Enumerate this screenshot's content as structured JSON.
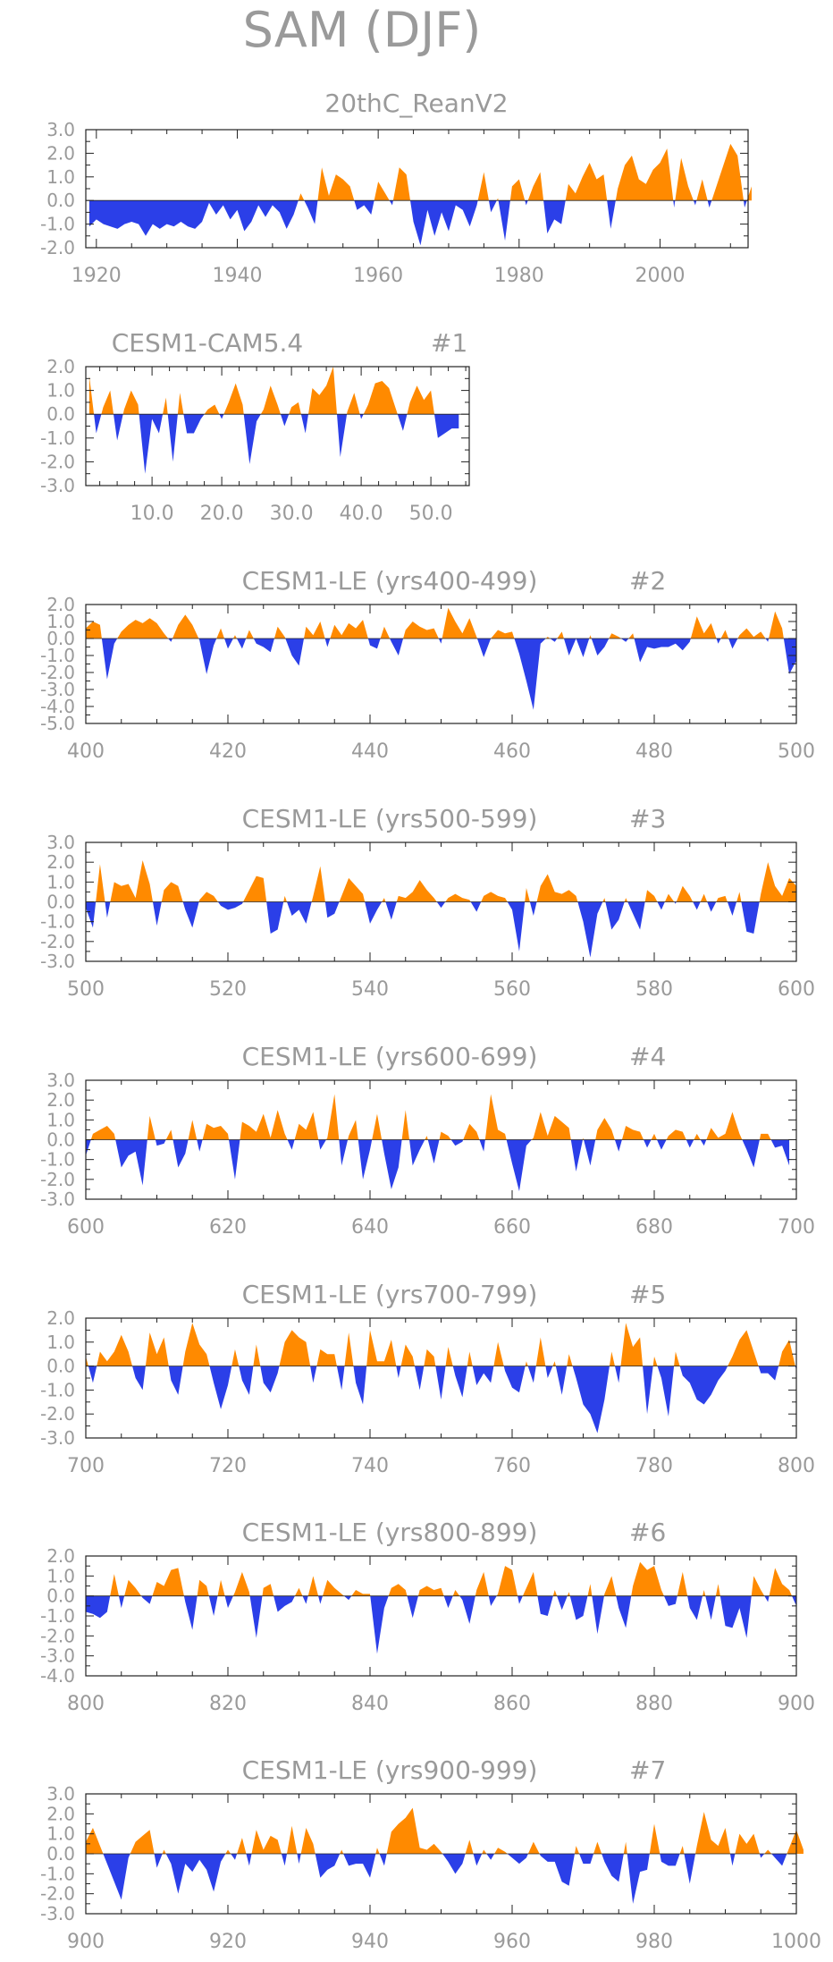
{
  "figure_title": "SAM (DJF)",
  "colors": {
    "positive": "#ff8a00",
    "negative": "#2b3fe8",
    "text": "#9a9a9a",
    "axis": "#222222"
  },
  "chart_data": [
    {
      "type": "area",
      "title": "20thC_ReanV2",
      "subtitle": "",
      "ylim": [
        -2.0,
        3.0
      ],
      "yticks": [
        3.0,
        2.0,
        1.0,
        0.0,
        -1.0,
        -2.0
      ],
      "ytick_labels": [
        "3.0",
        "2.0",
        "1.0",
        "0.0",
        "-1.0",
        "-2.0"
      ],
      "xlim": [
        1918.5,
        2012.5
      ],
      "xticks": [
        1920,
        1940,
        1960,
        1980,
        2000
      ],
      "xtick_labels": [
        "1920",
        "1940",
        "1960",
        "1980",
        "2000"
      ],
      "x_start": 1919,
      "values": [
        -1.1,
        -0.8,
        -1.0,
        -1.1,
        -1.2,
        -1.0,
        -0.9,
        -1.0,
        -1.5,
        -1.0,
        -1.2,
        -1.0,
        -1.1,
        -0.9,
        -1.1,
        -1.2,
        -0.9,
        -0.1,
        -0.6,
        -0.2,
        -0.8,
        -0.4,
        -1.3,
        -0.9,
        -0.2,
        -0.7,
        -0.2,
        -0.5,
        -1.2,
        -0.6,
        0.3,
        -0.3,
        -1.0,
        1.4,
        0.2,
        1.1,
        0.9,
        0.6,
        -0.4,
        -0.2,
        -0.6,
        0.8,
        0.3,
        -0.2,
        1.4,
        1.1,
        -0.9,
        -1.9,
        -0.4,
        -1.5,
        -0.5,
        -1.3,
        -0.2,
        -0.4,
        -1.1,
        -0.2,
        1.2,
        -0.5,
        0.1,
        -1.7,
        0.6,
        0.9,
        -0.2,
        0.6,
        1.2,
        -1.4,
        -0.8,
        -1.0,
        0.7,
        0.3,
        1.0,
        1.6,
        0.9,
        1.1,
        -1.2,
        0.5,
        1.5,
        1.9,
        0.9,
        0.7,
        1.3,
        1.6,
        2.2,
        -0.3,
        1.8,
        0.6,
        -0.2,
        0.9,
        -0.3,
        0.6,
        1.5,
        2.4,
        1.9,
        -0.3,
        0.6
      ]
    },
    {
      "type": "area",
      "title": "CESM1-CAM5.4",
      "subtitle": "#1",
      "ylim": [
        -3.0,
        2.0
      ],
      "yticks": [
        2.0,
        1.0,
        0.0,
        -1.0,
        -2.0,
        -3.0
      ],
      "ytick_labels": [
        "2.0",
        "1.0",
        "0.0",
        "-1.0",
        "-2.0",
        "-3.0"
      ],
      "xlim": [
        0.5,
        55.5
      ],
      "xticks": [
        10,
        20,
        30,
        40,
        50
      ],
      "xtick_labels": [
        "10.0",
        "20.0",
        "30.0",
        "40.0",
        "50.0"
      ],
      "x_start": 1,
      "values": [
        1.6,
        -0.8,
        0.3,
        1.0,
        -1.1,
        0.2,
        1.0,
        0.4,
        -2.5,
        -0.2,
        -0.8,
        0.7,
        -2.0,
        0.9,
        -0.8,
        -0.8,
        -0.2,
        0.2,
        0.4,
        -0.2,
        0.5,
        1.3,
        0.4,
        -2.1,
        -0.3,
        0.2,
        1.2,
        0.4,
        -0.5,
        0.3,
        0.5,
        -0.8,
        1.1,
        0.8,
        1.2,
        2.0,
        -1.8,
        0.1,
        0.9,
        -0.2,
        0.4,
        1.3,
        1.4,
        1.1,
        0.2,
        -0.7,
        0.5,
        1.2,
        0.6,
        1.0,
        -1.0,
        -0.8,
        -0.6,
        -0.6
      ]
    },
    {
      "type": "area",
      "title": "CESM1-LE (yrs400-499)",
      "subtitle": "#2",
      "ylim": [
        -5.0,
        2.0
      ],
      "yticks": [
        2.0,
        1.0,
        0.0,
        -1.0,
        -2.0,
        -3.0,
        -4.0,
        -5.0
      ],
      "ytick_labels": [
        "2.0",
        "1.0",
        "0.0",
        "-1.0",
        "-2.0",
        "-3.0",
        "-4.0",
        "-5.0"
      ],
      "xlim": [
        400,
        500
      ],
      "xticks": [
        400,
        420,
        440,
        460,
        480,
        500
      ],
      "xtick_labels": [
        "400",
        "420",
        "440",
        "460",
        "480",
        "500"
      ],
      "x_start": 400,
      "values": [
        0.6,
        1.0,
        0.8,
        -2.4,
        -0.3,
        0.4,
        0.8,
        1.1,
        0.9,
        1.2,
        0.9,
        0.3,
        -0.2,
        0.8,
        1.4,
        0.8,
        -0.1,
        -2.1,
        -0.4,
        0.6,
        -0.6,
        0.2,
        -0.6,
        0.5,
        -0.3,
        -0.5,
        -0.8,
        0.7,
        0.1,
        -1.0,
        -1.6,
        0.7,
        0.2,
        1.0,
        -0.5,
        0.8,
        0.2,
        0.9,
        0.6,
        1.1,
        -0.4,
        -0.6,
        0.7,
        -0.2,
        -1.0,
        0.5,
        1.0,
        0.7,
        0.5,
        0.6,
        -0.3,
        1.8,
        1.0,
        0.3,
        1.2,
        0.1,
        -1.1,
        0.0,
        0.5,
        0.3,
        0.4,
        -0.9,
        -2.5,
        -4.2,
        -0.3,
        0.1,
        -0.2,
        0.4,
        -1.0,
        0.0,
        -1.1,
        0.2,
        -1.0,
        -0.5,
        0.3,
        0.1,
        -0.2,
        0.3,
        -1.4,
        -0.5,
        -0.6,
        -0.5,
        -0.5,
        -0.3,
        -0.7,
        -0.2,
        1.3,
        0.3,
        0.9,
        -0.3,
        0.5,
        -0.6,
        0.2,
        0.6,
        0.1,
        0.4,
        -0.2,
        1.6,
        0.6,
        -2.1,
        -1.3
      ]
    },
    {
      "type": "area",
      "title": "CESM1-LE (yrs500-599)",
      "subtitle": "#3",
      "ylim": [
        -3.0,
        3.0
      ],
      "yticks": [
        3.0,
        2.0,
        1.0,
        0.0,
        -1.0,
        -2.0,
        -3.0
      ],
      "ytick_labels": [
        "3.0",
        "2.0",
        "1.0",
        "0.0",
        "-1.0",
        "-2.0",
        "-3.0"
      ],
      "xlim": [
        500,
        600
      ],
      "xticks": [
        500,
        520,
        540,
        560,
        580,
        600
      ],
      "xtick_labels": [
        "500",
        "520",
        "540",
        "560",
        "580",
        "600"
      ],
      "x_start": 500,
      "values": [
        -0.3,
        -1.3,
        1.9,
        -0.8,
        1.0,
        0.8,
        0.9,
        0.2,
        2.1,
        0.9,
        -1.2,
        0.6,
        1.0,
        0.8,
        -0.4,
        -1.3,
        0.1,
        0.5,
        0.3,
        -0.2,
        -0.4,
        -0.3,
        -0.1,
        0.6,
        1.3,
        1.2,
        -1.6,
        -1.4,
        0.3,
        -0.7,
        -0.4,
        -1.1,
        0.3,
        1.8,
        -0.8,
        -0.6,
        0.3,
        1.2,
        0.8,
        0.4,
        -1.1,
        -0.4,
        0.2,
        -0.9,
        0.3,
        0.2,
        0.5,
        1.1,
        0.6,
        0.2,
        -0.3,
        0.2,
        0.4,
        0.2,
        0.1,
        -0.5,
        0.3,
        0.5,
        0.3,
        0.2,
        -0.4,
        -2.5,
        0.7,
        -0.7,
        0.8,
        1.4,
        0.5,
        0.4,
        0.6,
        0.3,
        -1.0,
        -2.8,
        -0.6,
        0.2,
        -1.4,
        -0.9,
        0.2,
        -0.6,
        -1.4,
        0.6,
        0.3,
        -0.4,
        0.4,
        -0.1,
        0.8,
        0.3,
        -0.4,
        0.4,
        -0.5,
        0.2,
        0.3,
        -0.7,
        0.5,
        -1.5,
        -1.6,
        0.4,
        2.0,
        0.8,
        0.3,
        1.2,
        0.8
      ]
    },
    {
      "type": "area",
      "title": "CESM1-LE (yrs600-699)",
      "subtitle": "#4",
      "ylim": [
        -3.0,
        3.0
      ],
      "yticks": [
        3.0,
        2.0,
        1.0,
        0.0,
        -1.0,
        -2.0,
        -3.0
      ],
      "ytick_labels": [
        "3.0",
        "2.0",
        "1.0",
        "0.0",
        "-1.0",
        "-2.0",
        "-3.0"
      ],
      "xlim": [
        600,
        700
      ],
      "xticks": [
        600,
        620,
        640,
        660,
        680,
        700
      ],
      "xtick_labels": [
        "600",
        "620",
        "640",
        "660",
        "680",
        "700"
      ],
      "x_start": 600,
      "values": [
        -0.8,
        0.3,
        0.5,
        0.7,
        0.3,
        -1.4,
        -0.8,
        -0.6,
        -2.3,
        1.2,
        -0.3,
        -0.2,
        0.5,
        -1.4,
        -0.7,
        1.0,
        -0.6,
        0.8,
        0.6,
        0.7,
        0.3,
        -2.0,
        0.9,
        0.7,
        0.4,
        1.3,
        0.1,
        1.5,
        0.3,
        -0.5,
        0.8,
        0.5,
        1.4,
        -0.5,
        0.1,
        2.3,
        -1.3,
        0.2,
        1.0,
        -2.0,
        -0.5,
        1.3,
        -0.7,
        -2.5,
        -1.4,
        1.5,
        -1.3,
        -0.5,
        0.2,
        -1.2,
        0.4,
        0.2,
        -0.3,
        -0.1,
        0.8,
        0.4,
        -0.6,
        2.3,
        0.5,
        0.3,
        -1.2,
        -2.6,
        -0.3,
        0.1,
        1.4,
        0.2,
        1.2,
        0.9,
        0.6,
        -1.6,
        0.1,
        -1.3,
        0.5,
        1.1,
        0.5,
        -0.6,
        0.7,
        0.5,
        0.4,
        -0.4,
        0.3,
        -0.5,
        0.2,
        0.5,
        0.4,
        -0.4,
        0.3,
        -0.3,
        0.6,
        0.1,
        0.3,
        1.4,
        0.3,
        -0.5,
        -1.4,
        0.3,
        0.3,
        -0.4,
        -0.3,
        -1.3
      ]
    },
    {
      "type": "area",
      "title": "CESM1-LE (yrs700-799)",
      "subtitle": "#5",
      "ylim": [
        -3.0,
        2.0
      ],
      "yticks": [
        2.0,
        1.0,
        0.0,
        -1.0,
        -2.0,
        -3.0
      ],
      "ytick_labels": [
        "2.0",
        "1.0",
        "0.0",
        "-1.0",
        "-2.0",
        "-3.0"
      ],
      "xlim": [
        700,
        800
      ],
      "xticks": [
        700,
        720,
        740,
        760,
        780,
        800
      ],
      "xtick_labels": [
        "700",
        "720",
        "740",
        "760",
        "780",
        "800"
      ],
      "x_start": 700,
      "values": [
        0.4,
        -0.7,
        0.6,
        0.2,
        0.6,
        1.3,
        0.6,
        -0.5,
        -1.0,
        1.4,
        0.5,
        1.2,
        -0.6,
        -1.2,
        0.6,
        1.8,
        0.9,
        0.5,
        -0.7,
        -1.8,
        -0.8,
        0.7,
        -0.6,
        -1.2,
        0.9,
        -0.7,
        -1.1,
        -0.3,
        1.0,
        1.5,
        1.2,
        1.0,
        -0.7,
        0.7,
        0.5,
        0.5,
        -1.0,
        1.4,
        -0.7,
        -1.6,
        1.5,
        0.2,
        0.2,
        1.1,
        -0.5,
        0.9,
        0.4,
        -1.0,
        0.7,
        0.4,
        -1.4,
        0.8,
        -0.4,
        -1.3,
        0.6,
        -0.8,
        -0.3,
        -0.7,
        1.0,
        -0.2,
        -0.9,
        -1.1,
        0.2,
        -0.7,
        1.2,
        -0.5,
        0.2,
        -1.2,
        0.5,
        -0.5,
        -1.6,
        -2.0,
        -2.8,
        -1.4,
        0.6,
        -0.7,
        1.8,
        0.8,
        1.2,
        -2.0,
        0.4,
        -0.5,
        -2.1,
        0.6,
        -0.4,
        -0.7,
        -1.4,
        -1.6,
        -1.2,
        -0.6,
        -0.2,
        0.4,
        1.1,
        1.5,
        0.6,
        -0.3,
        -0.3,
        -0.6,
        0.6,
        1.1,
        -0.2
      ]
    },
    {
      "type": "area",
      "title": "CESM1-LE (yrs800-899)",
      "subtitle": "#6",
      "ylim": [
        -4.0,
        2.0
      ],
      "yticks": [
        2.0,
        1.0,
        0.0,
        -1.0,
        -2.0,
        -3.0,
        -4.0
      ],
      "ytick_labels": [
        "2.0",
        "1.0",
        "0.0",
        "-1.0",
        "-2.0",
        "-3.0",
        "-4.0"
      ],
      "xlim": [
        800,
        900
      ],
      "xticks": [
        800,
        820,
        840,
        860,
        880,
        900
      ],
      "xtick_labels": [
        "800",
        "820",
        "840",
        "860",
        "880",
        "900"
      ],
      "x_start": 800,
      "values": [
        -0.8,
        -0.9,
        -1.1,
        -0.8,
        1.1,
        -0.6,
        0.8,
        0.4,
        -0.1,
        -0.4,
        0.7,
        0.5,
        1.3,
        1.4,
        -0.3,
        -1.7,
        0.8,
        0.5,
        -1.0,
        0.8,
        -0.6,
        0.2,
        1.2,
        0.2,
        -2.1,
        0.4,
        0.6,
        -0.8,
        -0.5,
        -0.3,
        0.4,
        -0.4,
        1.0,
        -0.4,
        0.8,
        0.4,
        0.1,
        -0.2,
        0.3,
        0.1,
        0.1,
        -2.9,
        -0.6,
        0.4,
        0.6,
        0.3,
        -1.1,
        0.3,
        0.5,
        0.3,
        0.4,
        -0.6,
        0.3,
        -0.2,
        -1.4,
        0.3,
        1.2,
        -0.5,
        0.1,
        1.5,
        1.3,
        -0.4,
        0.4,
        1.2,
        -0.9,
        -1.0,
        0.3,
        -0.7,
        0.2,
        -1.2,
        -1.0,
        0.6,
        -1.9,
        0.1,
        1.0,
        -0.6,
        -1.6,
        0.5,
        1.7,
        1.3,
        1.5,
        0.3,
        -0.5,
        -0.4,
        1.2,
        -0.6,
        -1.2,
        0.3,
        -1.2,
        0.6,
        -1.5,
        -1.6,
        -0.6,
        -2.1,
        1.0,
        0.3,
        -0.3,
        1.4,
        0.6,
        0.3,
        -0.5
      ]
    },
    {
      "type": "area",
      "title": "CESM1-LE (yrs900-999)",
      "subtitle": "#7",
      "ylim": [
        -3.0,
        3.0
      ],
      "yticks": [
        3.0,
        2.0,
        1.0,
        0.0,
        -1.0,
        -2.0,
        -3.0
      ],
      "ytick_labels": [
        "3.0",
        "2.0",
        "1.0",
        "0.0",
        "-1.0",
        "-2.0",
        "-3.0"
      ],
      "xlim": [
        900,
        1000
      ],
      "xticks": [
        900,
        920,
        940,
        960,
        980,
        1000
      ],
      "xtick_labels": [
        "900",
        "920",
        "940",
        "960",
        "980",
        "1000"
      ],
      "x_start": 900,
      "values": [
        0.6,
        1.3,
        0.4,
        -0.5,
        -1.4,
        -2.3,
        -0.2,
        0.6,
        0.9,
        1.2,
        -0.7,
        0.2,
        -0.5,
        -2.0,
        -0.5,
        -0.9,
        -0.3,
        -0.8,
        -1.9,
        -0.4,
        0.2,
        -0.3,
        0.8,
        -0.6,
        1.2,
        0.2,
        0.9,
        0.7,
        -0.6,
        1.4,
        -0.5,
        1.3,
        0.5,
        -1.2,
        -0.8,
        -0.6,
        0.2,
        -0.6,
        -0.5,
        -0.5,
        -1.2,
        0.3,
        -0.6,
        1.1,
        1.5,
        1.8,
        2.3,
        0.3,
        0.2,
        0.5,
        0.1,
        -0.4,
        -1.0,
        -0.5,
        0.7,
        -0.6,
        0.2,
        -0.3,
        0.3,
        0.1,
        -0.2,
        -0.5,
        -0.2,
        0.6,
        -0.1,
        -0.4,
        -0.4,
        -1.4,
        -1.6,
        0.4,
        -0.5,
        -0.5,
        0.6,
        -0.4,
        -1.1,
        -1.4,
        0.6,
        -2.5,
        -0.9,
        -0.8,
        1.5,
        -0.4,
        -0.6,
        -0.6,
        0.4,
        -1.5,
        0.4,
        2.1,
        0.7,
        0.4,
        1.3,
        -0.6,
        1.0,
        0.5,
        1.0,
        -0.2,
        0.2,
        -0.2,
        -0.6,
        0.3,
        1.2,
        0.2
      ]
    }
  ]
}
